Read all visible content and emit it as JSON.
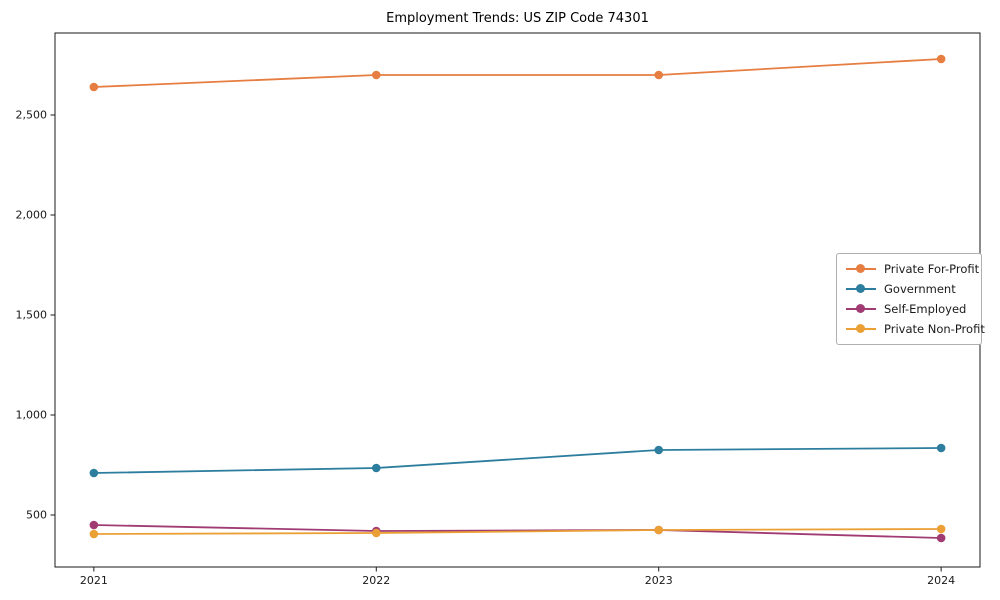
{
  "chart_data": {
    "type": "line",
    "title": "Employment Trends: US ZIP Code 74301",
    "xlabel": "",
    "ylabel": "",
    "grid": false,
    "legend_position": "right",
    "categories": [
      "2021",
      "2022",
      "2023",
      "2024"
    ],
    "series": [
      {
        "name": "Private For-Profit",
        "color": "#E67D41",
        "values": [
          2640,
          2700,
          2700,
          2780
        ]
      },
      {
        "name": "Government",
        "color": "#2D7E9E",
        "values": [
          710,
          735,
          825,
          835
        ]
      },
      {
        "name": "Self-Employed",
        "color": "#A03C73",
        "values": [
          450,
          420,
          425,
          385
        ]
      },
      {
        "name": "Private Non-Profit",
        "color": "#EBA036",
        "values": [
          405,
          410,
          425,
          430
        ]
      }
    ],
    "yticks": [
      {
        "value": 500,
        "label": "500"
      },
      {
        "value": 1000,
        "label": "1,000"
      },
      {
        "value": 1500,
        "label": "1,500"
      },
      {
        "value": 2000,
        "label": "2,000"
      },
      {
        "value": 2500,
        "label": "2,500"
      }
    ],
    "ylim": [
      240,
      2910
    ],
    "axis_color": "#1a1a1a",
    "tick_label_color": "#1a1a1a"
  }
}
